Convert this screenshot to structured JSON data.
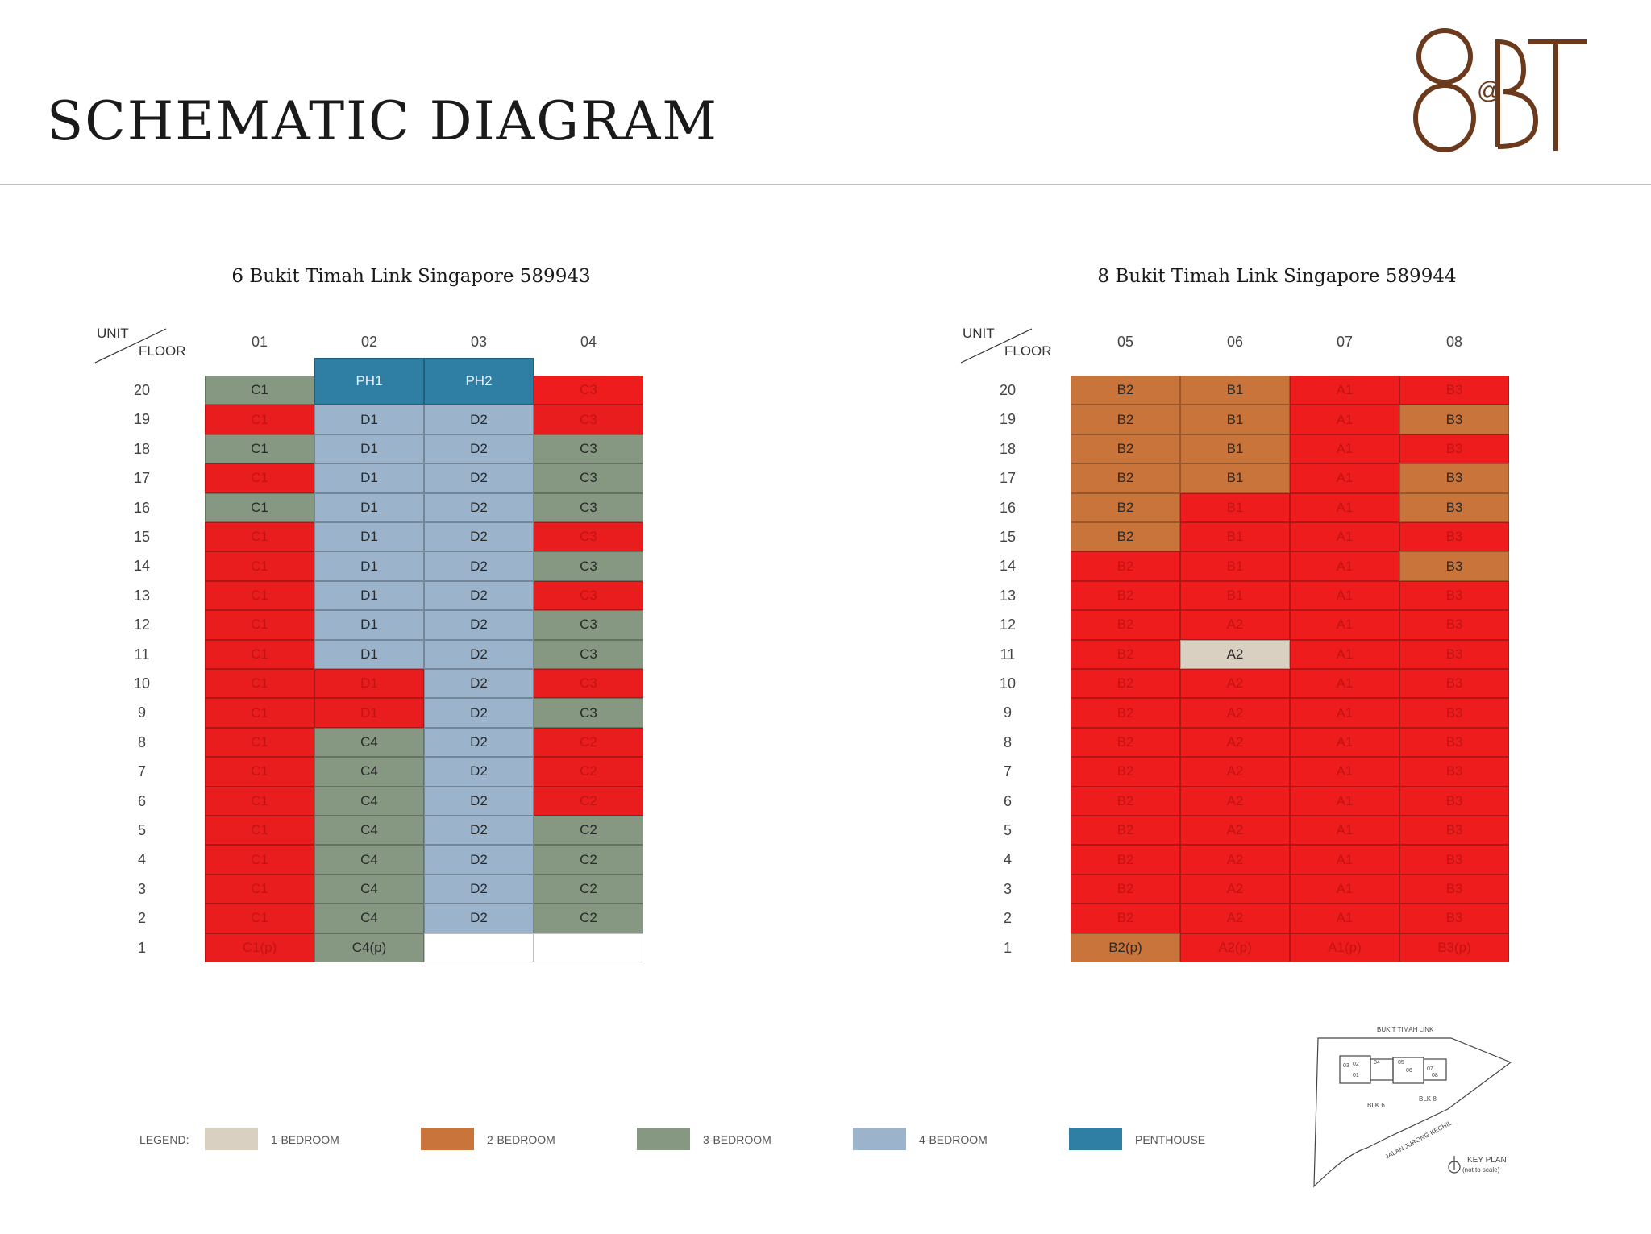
{
  "title": "SCHEMATIC DIAGRAM",
  "logo": {
    "text1": "8",
    "text2": "@",
    "text3": "BT"
  },
  "header": {
    "unit": "UNIT",
    "floor": "FLOOR"
  },
  "floors": [
    "20",
    "19",
    "18",
    "17",
    "16",
    "15",
    "14",
    "13",
    "12",
    "11",
    "10",
    "9",
    "8",
    "7",
    "6",
    "5",
    "4",
    "3",
    "2",
    "1"
  ],
  "colors": {
    "1br": "#d9d0c1",
    "2br": "#c9743a",
    "3br": "#869882",
    "4br": "#9bb4cc",
    "ph": "#2f7ea3",
    "sold": "#ee1c1c",
    "empty": "#ffffff"
  },
  "blocks": [
    {
      "title": "6 Bukit Timah Link Singapore 589943",
      "columns": [
        "01",
        "02",
        "03",
        "04"
      ],
      "units": [
        [
          {
            "t": "C1",
            "s": "3br"
          },
          {
            "t": "PH1",
            "s": "ph",
            "span": "ph"
          },
          {
            "t": "PH2",
            "s": "ph",
            "span": "ph"
          },
          {
            "t": "C3",
            "s": "sold"
          }
        ],
        [
          {
            "t": "C1",
            "s": "sold"
          },
          {
            "t": "D1",
            "s": "4br"
          },
          {
            "t": "D2",
            "s": "4br"
          },
          {
            "t": "C3",
            "s": "sold"
          }
        ],
        [
          {
            "t": "C1",
            "s": "3br"
          },
          {
            "t": "D1",
            "s": "4br"
          },
          {
            "t": "D2",
            "s": "4br"
          },
          {
            "t": "C3",
            "s": "3br"
          }
        ],
        [
          {
            "t": "C1",
            "s": "sold"
          },
          {
            "t": "D1",
            "s": "4br"
          },
          {
            "t": "D2",
            "s": "4br"
          },
          {
            "t": "C3",
            "s": "3br"
          }
        ],
        [
          {
            "t": "C1",
            "s": "3br"
          },
          {
            "t": "D1",
            "s": "4br"
          },
          {
            "t": "D2",
            "s": "4br"
          },
          {
            "t": "C3",
            "s": "3br"
          }
        ],
        [
          {
            "t": "C1",
            "s": "sold"
          },
          {
            "t": "D1",
            "s": "4br"
          },
          {
            "t": "D2",
            "s": "4br"
          },
          {
            "t": "C3",
            "s": "sold"
          }
        ],
        [
          {
            "t": "C1",
            "s": "sold"
          },
          {
            "t": "D1",
            "s": "4br"
          },
          {
            "t": "D2",
            "s": "4br"
          },
          {
            "t": "C3",
            "s": "3br"
          }
        ],
        [
          {
            "t": "C1",
            "s": "sold"
          },
          {
            "t": "D1",
            "s": "4br"
          },
          {
            "t": "D2",
            "s": "4br"
          },
          {
            "t": "C3",
            "s": "sold"
          }
        ],
        [
          {
            "t": "C1",
            "s": "sold"
          },
          {
            "t": "D1",
            "s": "4br"
          },
          {
            "t": "D2",
            "s": "4br"
          },
          {
            "t": "C3",
            "s": "3br"
          }
        ],
        [
          {
            "t": "C1",
            "s": "sold"
          },
          {
            "t": "D1",
            "s": "4br"
          },
          {
            "t": "D2",
            "s": "4br"
          },
          {
            "t": "C3",
            "s": "3br"
          }
        ],
        [
          {
            "t": "C1",
            "s": "sold"
          },
          {
            "t": "D1",
            "s": "sold"
          },
          {
            "t": "D2",
            "s": "4br"
          },
          {
            "t": "C3",
            "s": "sold"
          }
        ],
        [
          {
            "t": "C1",
            "s": "sold"
          },
          {
            "t": "D1",
            "s": "sold"
          },
          {
            "t": "D2",
            "s": "4br"
          },
          {
            "t": "C3",
            "s": "3br"
          }
        ],
        [
          {
            "t": "C1",
            "s": "sold"
          },
          {
            "t": "C4",
            "s": "3br"
          },
          {
            "t": "D2",
            "s": "4br"
          },
          {
            "t": "C2",
            "s": "sold"
          }
        ],
        [
          {
            "t": "C1",
            "s": "sold"
          },
          {
            "t": "C4",
            "s": "3br"
          },
          {
            "t": "D2",
            "s": "4br"
          },
          {
            "t": "C2",
            "s": "sold"
          }
        ],
        [
          {
            "t": "C1",
            "s": "sold"
          },
          {
            "t": "C4",
            "s": "3br"
          },
          {
            "t": "D2",
            "s": "4br"
          },
          {
            "t": "C2",
            "s": "sold"
          }
        ],
        [
          {
            "t": "C1",
            "s": "sold"
          },
          {
            "t": "C4",
            "s": "3br"
          },
          {
            "t": "D2",
            "s": "4br"
          },
          {
            "t": "C2",
            "s": "3br"
          }
        ],
        [
          {
            "t": "C1",
            "s": "sold"
          },
          {
            "t": "C4",
            "s": "3br"
          },
          {
            "t": "D2",
            "s": "4br"
          },
          {
            "t": "C2",
            "s": "3br"
          }
        ],
        [
          {
            "t": "C1",
            "s": "sold"
          },
          {
            "t": "C4",
            "s": "3br"
          },
          {
            "t": "D2",
            "s": "4br"
          },
          {
            "t": "C2",
            "s": "3br"
          }
        ],
        [
          {
            "t": "C1",
            "s": "sold"
          },
          {
            "t": "C4",
            "s": "3br"
          },
          {
            "t": "D2",
            "s": "4br"
          },
          {
            "t": "C2",
            "s": "3br"
          }
        ],
        [
          {
            "t": "C1(p)",
            "s": "sold"
          },
          {
            "t": "C4(p)",
            "s": "3br"
          },
          {
            "t": "",
            "s": "empty"
          },
          {
            "t": "",
            "s": "empty"
          }
        ]
      ]
    },
    {
      "title": "8 Bukit Timah Link Singapore 589944",
      "columns": [
        "05",
        "06",
        "07",
        "08"
      ],
      "units": [
        [
          {
            "t": "B2",
            "s": "2br"
          },
          {
            "t": "B1",
            "s": "2br"
          },
          {
            "t": "A1",
            "s": "sold"
          },
          {
            "t": "B3",
            "s": "sold"
          }
        ],
        [
          {
            "t": "B2",
            "s": "2br"
          },
          {
            "t": "B1",
            "s": "2br"
          },
          {
            "t": "A1",
            "s": "sold"
          },
          {
            "t": "B3",
            "s": "2br"
          }
        ],
        [
          {
            "t": "B2",
            "s": "2br"
          },
          {
            "t": "B1",
            "s": "2br"
          },
          {
            "t": "A1",
            "s": "sold"
          },
          {
            "t": "B3",
            "s": "sold"
          }
        ],
        [
          {
            "t": "B2",
            "s": "2br"
          },
          {
            "t": "B1",
            "s": "2br"
          },
          {
            "t": "A1",
            "s": "sold"
          },
          {
            "t": "B3",
            "s": "2br"
          }
        ],
        [
          {
            "t": "B2",
            "s": "2br"
          },
          {
            "t": "B1",
            "s": "sold"
          },
          {
            "t": "A1",
            "s": "sold"
          },
          {
            "t": "B3",
            "s": "2br"
          }
        ],
        [
          {
            "t": "B2",
            "s": "2br"
          },
          {
            "t": "B1",
            "s": "sold"
          },
          {
            "t": "A1",
            "s": "sold"
          },
          {
            "t": "B3",
            "s": "sold"
          }
        ],
        [
          {
            "t": "B2",
            "s": "sold"
          },
          {
            "t": "B1",
            "s": "sold"
          },
          {
            "t": "A1",
            "s": "sold"
          },
          {
            "t": "B3",
            "s": "2br"
          }
        ],
        [
          {
            "t": "B2",
            "s": "sold"
          },
          {
            "t": "B1",
            "s": "sold"
          },
          {
            "t": "A1",
            "s": "sold"
          },
          {
            "t": "B3",
            "s": "sold"
          }
        ],
        [
          {
            "t": "B2",
            "s": "sold"
          },
          {
            "t": "A2",
            "s": "sold"
          },
          {
            "t": "A1",
            "s": "sold"
          },
          {
            "t": "B3",
            "s": "sold"
          }
        ],
        [
          {
            "t": "B2",
            "s": "sold"
          },
          {
            "t": "A2",
            "s": "1br"
          },
          {
            "t": "A1",
            "s": "sold"
          },
          {
            "t": "B3",
            "s": "sold"
          }
        ],
        [
          {
            "t": "B2",
            "s": "sold"
          },
          {
            "t": "A2",
            "s": "sold"
          },
          {
            "t": "A1",
            "s": "sold"
          },
          {
            "t": "B3",
            "s": "sold"
          }
        ],
        [
          {
            "t": "B2",
            "s": "sold"
          },
          {
            "t": "A2",
            "s": "sold"
          },
          {
            "t": "A1",
            "s": "sold"
          },
          {
            "t": "B3",
            "s": "sold"
          }
        ],
        [
          {
            "t": "B2",
            "s": "sold"
          },
          {
            "t": "A2",
            "s": "sold"
          },
          {
            "t": "A1",
            "s": "sold"
          },
          {
            "t": "B3",
            "s": "sold"
          }
        ],
        [
          {
            "t": "B2",
            "s": "sold"
          },
          {
            "t": "A2",
            "s": "sold"
          },
          {
            "t": "A1",
            "s": "sold"
          },
          {
            "t": "B3",
            "s": "sold"
          }
        ],
        [
          {
            "t": "B2",
            "s": "sold"
          },
          {
            "t": "A2",
            "s": "sold"
          },
          {
            "t": "A1",
            "s": "sold"
          },
          {
            "t": "B3",
            "s": "sold"
          }
        ],
        [
          {
            "t": "B2",
            "s": "sold"
          },
          {
            "t": "A2",
            "s": "sold"
          },
          {
            "t": "A1",
            "s": "sold"
          },
          {
            "t": "B3",
            "s": "sold"
          }
        ],
        [
          {
            "t": "B2",
            "s": "sold"
          },
          {
            "t": "A2",
            "s": "sold"
          },
          {
            "t": "A1",
            "s": "sold"
          },
          {
            "t": "B3",
            "s": "sold"
          }
        ],
        [
          {
            "t": "B2",
            "s": "sold"
          },
          {
            "t": "A2",
            "s": "sold"
          },
          {
            "t": "A1",
            "s": "sold"
          },
          {
            "t": "B3",
            "s": "sold"
          }
        ],
        [
          {
            "t": "B2",
            "s": "sold"
          },
          {
            "t": "A2",
            "s": "sold"
          },
          {
            "t": "A1",
            "s": "sold"
          },
          {
            "t": "B3",
            "s": "sold"
          }
        ],
        [
          {
            "t": "B2(p)",
            "s": "2br"
          },
          {
            "t": "A2(p)",
            "s": "sold"
          },
          {
            "t": "A1(p)",
            "s": "sold"
          },
          {
            "t": "B3(p)",
            "s": "sold"
          }
        ]
      ]
    }
  ],
  "legend": {
    "label": "LEGEND:",
    "items": [
      {
        "key": "1br",
        "label": "1-BEDROOM"
      },
      {
        "key": "2br",
        "label": "2-BEDROOM"
      },
      {
        "key": "3br",
        "label": "3-BEDROOM"
      },
      {
        "key": "4br",
        "label": "4-BEDROOM"
      },
      {
        "key": "ph",
        "label": "PENTHOUSE"
      }
    ]
  },
  "keyplan": {
    "road_top": "BUKIT TIMAH LINK",
    "road_bottom": "JALAN JURONG KECHIL",
    "blk6": "BLK 6",
    "blk8": "BLK 8",
    "caption1": "KEY PLAN",
    "caption2": "(not to scale)",
    "units": [
      "01",
      "02",
      "03",
      "04",
      "05",
      "06",
      "07",
      "08"
    ]
  }
}
